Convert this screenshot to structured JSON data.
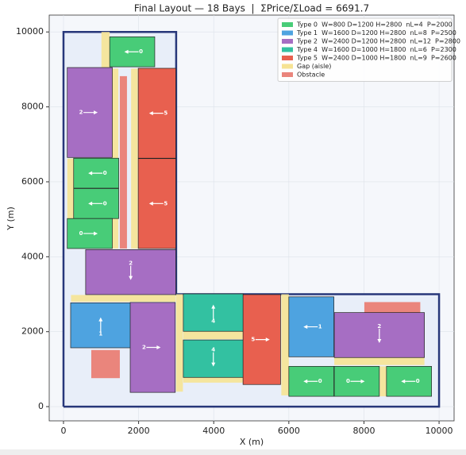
{
  "chart_data": {
    "type": "layout",
    "title": "Final Layout — 18 Bays  |  ΣPrice/ΣLoad = 6691.7",
    "xlabel": "X (m)",
    "ylabel": "Y (m)",
    "xlim": [
      -380,
      10400
    ],
    "ylim": [
      -380,
      10450
    ],
    "xticks": [
      0,
      2000,
      4000,
      6000,
      8000,
      10000
    ],
    "yticks": [
      0,
      2000,
      4000,
      6000,
      8000,
      10000
    ],
    "grid": true,
    "legend_position": "upper right",
    "boundary": {
      "x": [
        0,
        10000,
        10000,
        3000,
        3000,
        0,
        0
      ],
      "y": [
        0,
        0,
        3000,
        3000,
        10000,
        10000,
        0
      ],
      "color": "#27377a",
      "fill": "#e8eef9"
    },
    "legend": [
      {
        "name": "Type 0  W=800 D=1200 H=2800  nL=4  P=2000",
        "color": "#48cc78"
      },
      {
        "name": "Type 1  W=1600 D=1200 H=2800  nL=8  P=2500",
        "color": "#4ea3e0"
      },
      {
        "name": "Type 2  W=2400 D=1200 H=2800  nL=12  P=2800",
        "color": "#a66ec3"
      },
      {
        "name": "Type 4  W=1600 D=1000 H=1800  nL=6  P=2300",
        "color": "#33c1a1"
      },
      {
        "name": "Type 5  W=2400 D=1000 H=1800  nL=9  P=2600",
        "color": "#e8604f"
      },
      {
        "name": "Gap (aisle)",
        "color": "#f6e393"
      },
      {
        "name": "Obstacle",
        "color": "#ea857c"
      }
    ],
    "gaps": [
      {
        "x": 1010,
        "y": 9030,
        "w": 220,
        "h": 970
      },
      {
        "x": 1300,
        "y": 4220,
        "w": 160,
        "h": 4800
      },
      {
        "x": 1800,
        "y": 4220,
        "w": 180,
        "h": 4800
      },
      {
        "x": 100,
        "y": 4220,
        "w": 170,
        "h": 2400
      },
      {
        "x": 200,
        "y": 2800,
        "w": 2790,
        "h": 180
      },
      {
        "x": 3000,
        "y": 400,
        "w": 180,
        "h": 2600
      },
      {
        "x": 3190,
        "y": 640,
        "w": 1600,
        "h": 140
      },
      {
        "x": 3190,
        "y": 1800,
        "w": 1600,
        "h": 210
      },
      {
        "x": 5800,
        "y": 300,
        "w": 200,
        "h": 2700
      },
      {
        "x": 7210,
        "y": 1110,
        "w": 2400,
        "h": 200
      },
      {
        "x": 8420,
        "y": 275,
        "w": 180,
        "h": 800
      }
    ],
    "obstacles": [
      {
        "x": 1500,
        "y": 4220,
        "w": 190,
        "h": 4600
      },
      {
        "x": 740,
        "y": 760,
        "w": 760,
        "h": 750
      },
      {
        "x": 8010,
        "y": 2500,
        "w": 1490,
        "h": 290
      }
    ],
    "bays": [
      {
        "type": 0,
        "x": 1230,
        "y": 9070,
        "w": 1200,
        "h": 800,
        "dir": "left",
        "color": "#48cc78"
      },
      {
        "type": 2,
        "x": 100,
        "y": 6650,
        "w": 1200,
        "h": 2400,
        "dir": "right",
        "color": "#a66ec3"
      },
      {
        "type": 5,
        "x": 1990,
        "y": 6630,
        "w": 1000,
        "h": 2400,
        "dir": "left",
        "color": "#e8604f"
      },
      {
        "type": 5,
        "x": 1990,
        "y": 4220,
        "w": 1000,
        "h": 2400,
        "dir": "left",
        "color": "#e8604f"
      },
      {
        "type": 0,
        "x": 270,
        "y": 5830,
        "w": 1200,
        "h": 800,
        "dir": "left",
        "color": "#48cc78"
      },
      {
        "type": 0,
        "x": 270,
        "y": 5020,
        "w": 1200,
        "h": 800,
        "dir": "left",
        "color": "#48cc78"
      },
      {
        "type": 0,
        "x": 100,
        "y": 4220,
        "w": 1200,
        "h": 800,
        "dir": "right",
        "color": "#48cc78"
      },
      {
        "type": 2,
        "x": 590,
        "y": 2990,
        "w": 2400,
        "h": 1200,
        "dir": "down",
        "color": "#a66ec3"
      },
      {
        "type": 1,
        "x": 190,
        "y": 1570,
        "w": 1600,
        "h": 1200,
        "dir": "up",
        "color": "#4ea3e0"
      },
      {
        "type": 2,
        "x": 1776,
        "y": 380,
        "w": 1200,
        "h": 2400,
        "dir": "right",
        "color": "#a66ec3"
      },
      {
        "type": 4,
        "x": 3190,
        "y": 2010,
        "w": 1600,
        "h": 1000,
        "dir": "up",
        "color": "#33c1a1"
      },
      {
        "type": 4,
        "x": 3190,
        "y": 780,
        "w": 1600,
        "h": 1000,
        "dir": "down",
        "color": "#33c1a1"
      },
      {
        "type": 5,
        "x": 4780,
        "y": 590,
        "w": 1000,
        "h": 2400,
        "dir": "right",
        "color": "#e8604f"
      },
      {
        "type": 1,
        "x": 6000,
        "y": 1330,
        "w": 1200,
        "h": 1600,
        "dir": "left",
        "color": "#4ea3e0"
      },
      {
        "type": 2,
        "x": 7210,
        "y": 1310,
        "w": 2400,
        "h": 1200,
        "dir": "down",
        "color": "#a66ec3"
      },
      {
        "type": 0,
        "x": 6000,
        "y": 275,
        "w": 1200,
        "h": 800,
        "dir": "left",
        "color": "#48cc78"
      },
      {
        "type": 0,
        "x": 7210,
        "y": 275,
        "w": 1200,
        "h": 800,
        "dir": "right",
        "color": "#48cc78"
      },
      {
        "type": 0,
        "x": 8600,
        "y": 275,
        "w": 1200,
        "h": 800,
        "dir": "left",
        "color": "#48cc78"
      }
    ]
  }
}
